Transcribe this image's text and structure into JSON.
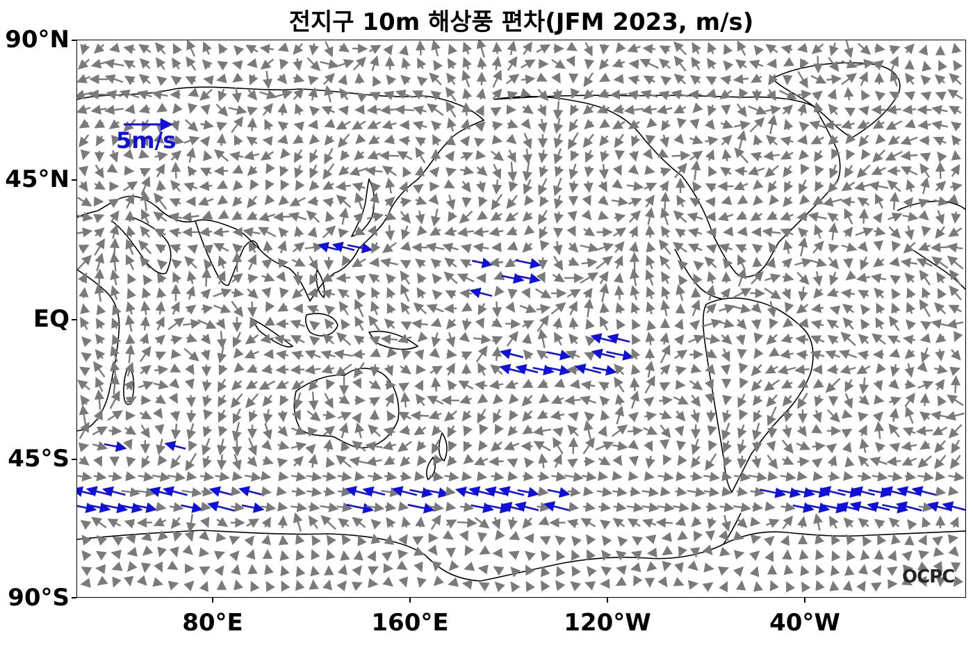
{
  "title": "전지구 10m 해상풍 편차(JFM 2023, m/s)",
  "y_axis_labels": [
    "90°N",
    "45°N",
    "EQ",
    "45°S",
    "90°S"
  ],
  "x_axis_labels": [
    "80°E",
    "160°E",
    "120°W",
    "40°W"
  ],
  "reference_vector_label": "5m/s",
  "watermark": "OCPC",
  "colors": {
    "normal_vector": "#7a7a7a",
    "strong_vector": "#1010dd",
    "coastline": "#000000",
    "text": "#000000"
  },
  "icons": [
    "reference-arrow-icon",
    "wind-vector-icon",
    "coastline-outline"
  ]
}
